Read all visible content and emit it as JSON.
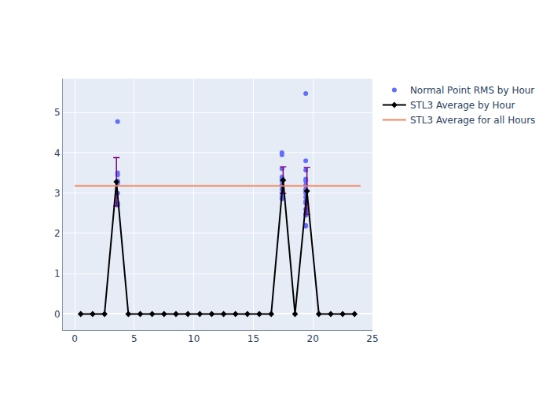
{
  "chart_data": {
    "type": "scatter",
    "grid": true,
    "legend": "right",
    "xlim": [
      -1,
      25
    ],
    "xticks": [
      0,
      5,
      10,
      15,
      20,
      25
    ],
    "ylim": [
      -0.4,
      5.84
    ],
    "yticks": [
      0,
      1,
      2,
      3,
      4,
      5
    ],
    "series": [
      {
        "name": "Normal Point RMS by Hour",
        "type": "scatter",
        "color": "#636efa",
        "marker": "circle",
        "x": [
          3.6,
          3.6,
          3.6,
          3.6,
          3.6,
          3.6,
          3.6,
          3.6,
          17.4,
          17.4,
          17.4,
          17.4,
          17.4,
          17.4,
          17.4,
          17.4,
          17.4,
          17.4,
          17.4,
          19.4,
          19.4,
          19.4,
          19.4,
          19.4,
          19.4,
          19.4,
          19.4,
          19.4,
          19.4,
          19.4,
          19.4,
          19.4,
          19.4,
          19.4,
          19.4,
          19.4
        ],
        "values": [
          4.77,
          3.5,
          3.45,
          3.3,
          3.25,
          3.0,
          2.75,
          2.7,
          4.0,
          3.95,
          3.6,
          3.4,
          3.35,
          3.3,
          3.2,
          3.1,
          3.0,
          2.9,
          2.85,
          5.47,
          3.8,
          3.57,
          3.35,
          3.3,
          3.2,
          3.1,
          3.05,
          3.0,
          2.9,
          2.8,
          2.75,
          2.6,
          2.5,
          2.45,
          2.2,
          2.18
        ]
      },
      {
        "name": "STL3 Average by Hour",
        "type": "line",
        "color": "#000000",
        "marker": "diamond",
        "x": [
          0.5,
          1.5,
          2.5,
          3.5,
          4.5,
          5.5,
          6.5,
          7.5,
          8.5,
          9.5,
          10.5,
          11.5,
          12.5,
          13.5,
          14.5,
          15.5,
          16.5,
          17.5,
          18.5,
          19.5,
          20.5,
          21.5,
          22.5,
          23.5
        ],
        "values": [
          0,
          0,
          0,
          3.28,
          0,
          0,
          0,
          0,
          0,
          0,
          0,
          0,
          0,
          0,
          0,
          0,
          0,
          3.32,
          0,
          3.05,
          0,
          0,
          0,
          0
        ],
        "error": [
          null,
          null,
          null,
          0.6,
          null,
          null,
          null,
          null,
          null,
          null,
          null,
          null,
          null,
          null,
          null,
          null,
          null,
          0.33,
          null,
          0.58,
          null,
          null,
          null,
          null
        ]
      },
      {
        "name": "STL3 Average for all Hours",
        "type": "line",
        "color": "#f4845f",
        "line_style": "solid",
        "x": [
          0,
          24
        ],
        "values": [
          3.18,
          3.18
        ]
      }
    ]
  }
}
